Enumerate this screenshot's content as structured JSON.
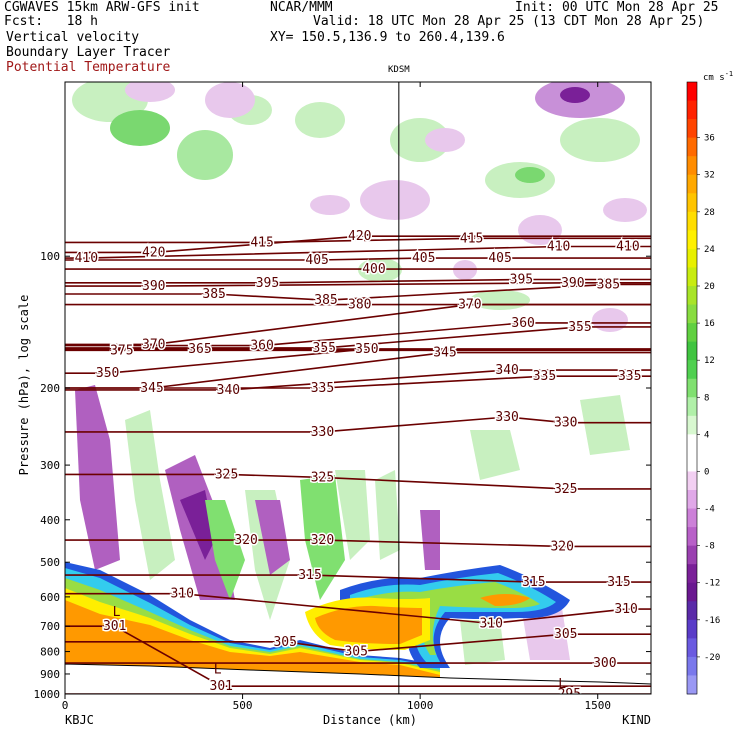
{
  "header": {
    "left_line1": "CGWAVES 15km ARW-GFS init",
    "center_line1": "NCAR/MMM",
    "right_line1": "Init: 00 UTC Mon 28 Apr 25",
    "left_line2": "Fcst:   18 h",
    "right_line2": "Valid: 18 UTC Mon 28 Apr 25 (13 CDT Mon 28 Apr 25)",
    "line3_left": "Vertical velocity",
    "line3_right": "XY= 150.5,136.9 to 260.4,139.6",
    "line4": "Boundary Layer Tracer",
    "line5": "Potential Temperature"
  },
  "colors": {
    "theta_contour": "#6b0000",
    "terrain": "#ffffff",
    "tracer_orange": "#ff9900",
    "tracer_yellow": "#ffee00",
    "tracer_green": "#99dd44",
    "tracer_cyan": "#33ccee",
    "tracer_blue": "#2255dd"
  },
  "chart_data": {
    "type": "cross-section",
    "title": "",
    "xlabel": "Distance (km)",
    "ylabel": "Pressure (hPa), log scale",
    "x_range": [
      0,
      1650
    ],
    "y_range_hpa": [
      1000,
      40
    ],
    "y_scale": "log",
    "x_ticks": [
      0,
      500,
      1000,
      1500
    ],
    "y_ticks": [
      100,
      200,
      300,
      400,
      500,
      600,
      700,
      800,
      900,
      1000
    ],
    "endpoints": {
      "left": "KBJC",
      "right": "KIND"
    },
    "station_marker": {
      "label": "KDSM",
      "x_km": 940
    },
    "theta_contours_K": [
      {
        "value": 301,
        "label_x_km": 140,
        "p_hpa": 700
      },
      {
        "value": 301,
        "label_x_km": 440,
        "p_hpa": 960
      },
      {
        "value": 295,
        "label_x_km": 1420,
        "p_hpa": 1000
      },
      {
        "value": 300,
        "label_x_km": 1520,
        "p_hpa": 850
      },
      {
        "value": 305,
        "label_x_km": 620,
        "p_hpa": 760
      },
      {
        "value": 305,
        "label_x_km": 820,
        "p_hpa": 800
      },
      {
        "value": 305,
        "label_x_km": 1410,
        "p_hpa": 730
      },
      {
        "value": 310,
        "label_x_km": 330,
        "p_hpa": 590
      },
      {
        "value": 310,
        "label_x_km": 1200,
        "p_hpa": 690
      },
      {
        "value": 310,
        "label_x_km": 1580,
        "p_hpa": 640
      },
      {
        "value": 315,
        "label_x_km": 690,
        "p_hpa": 535
      },
      {
        "value": 315,
        "label_x_km": 1320,
        "p_hpa": 555
      },
      {
        "value": 315,
        "label_x_km": 1560,
        "p_hpa": 555
      },
      {
        "value": 320,
        "label_x_km": 510,
        "p_hpa": 445
      },
      {
        "value": 320,
        "label_x_km": 725,
        "p_hpa": 445
      },
      {
        "value": 320,
        "label_x_km": 1400,
        "p_hpa": 460
      },
      {
        "value": 325,
        "label_x_km": 455,
        "p_hpa": 315
      },
      {
        "value": 325,
        "label_x_km": 725,
        "p_hpa": 320
      },
      {
        "value": 325,
        "label_x_km": 1410,
        "p_hpa": 340
      },
      {
        "value": 330,
        "label_x_km": 725,
        "p_hpa": 252
      },
      {
        "value": 330,
        "label_x_km": 1245,
        "p_hpa": 233
      },
      {
        "value": 330,
        "label_x_km": 1410,
        "p_hpa": 240
      },
      {
        "value": 335,
        "label_x_km": 725,
        "p_hpa": 200
      },
      {
        "value": 335,
        "label_x_km": 1350,
        "p_hpa": 188
      },
      {
        "value": 335,
        "label_x_km": 1590,
        "p_hpa": 188
      },
      {
        "value": 340,
        "label_x_km": 460,
        "p_hpa": 202
      },
      {
        "value": 340,
        "label_x_km": 1245,
        "p_hpa": 182
      },
      {
        "value": 345,
        "label_x_km": 245,
        "p_hpa": 200
      },
      {
        "value": 345,
        "label_x_km": 1070,
        "p_hpa": 166
      },
      {
        "value": 350,
        "label_x_km": 120,
        "p_hpa": 185
      },
      {
        "value": 350,
        "label_x_km": 850,
        "p_hpa": 163
      },
      {
        "value": 355,
        "label_x_km": 730,
        "p_hpa": 162
      },
      {
        "value": 355,
        "label_x_km": 1450,
        "p_hpa": 145
      },
      {
        "value": 360,
        "label_x_km": 555,
        "p_hpa": 160
      },
      {
        "value": 360,
        "label_x_km": 1290,
        "p_hpa": 142
      },
      {
        "value": 365,
        "label_x_km": 380,
        "p_hpa": 163
      },
      {
        "value": 370,
        "label_x_km": 250,
        "p_hpa": 159
      },
      {
        "value": 370,
        "label_x_km": 1140,
        "p_hpa": 129
      },
      {
        "value": 375,
        "label_x_km": 160,
        "p_hpa": 164
      },
      {
        "value": 380,
        "label_x_km": 830,
        "p_hpa": 129
      },
      {
        "value": 385,
        "label_x_km": 420,
        "p_hpa": 122
      },
      {
        "value": 385,
        "label_x_km": 735,
        "p_hpa": 126
      },
      {
        "value": 385,
        "label_x_km": 1530,
        "p_hpa": 116
      },
      {
        "value": 390,
        "label_x_km": 250,
        "p_hpa": 117
      },
      {
        "value": 390,
        "label_x_km": 1430,
        "p_hpa": 115
      },
      {
        "value": 395,
        "label_x_km": 570,
        "p_hpa": 115
      },
      {
        "value": 395,
        "label_x_km": 1285,
        "p_hpa": 113
      },
      {
        "value": 400,
        "label_x_km": 870,
        "p_hpa": 107
      },
      {
        "value": 405,
        "label_x_km": 710,
        "p_hpa": 102
      },
      {
        "value": 405,
        "label_x_km": 1010,
        "p_hpa": 101
      },
      {
        "value": 405,
        "label_x_km": 1225,
        "p_hpa": 101
      },
      {
        "value": 410,
        "label_x_km": 60,
        "p_hpa": 101
      },
      {
        "value": 410,
        "label_x_km": 1390,
        "p_hpa": 95
      },
      {
        "value": 410,
        "label_x_km": 1585,
        "p_hpa": 95
      },
      {
        "value": 415,
        "label_x_km": 555,
        "p_hpa": 93
      },
      {
        "value": 415,
        "label_x_km": 1145,
        "p_hpa": 91
      },
      {
        "value": 420,
        "label_x_km": 250,
        "p_hpa": 98
      },
      {
        "value": 420,
        "label_x_km": 830,
        "p_hpa": 90
      }
    ],
    "low_markers": [
      {
        "label": "L",
        "x_km": 145,
        "p_hpa": 650
      },
      {
        "label": "L",
        "x_km": 430,
        "p_hpa": 880
      },
      {
        "label": "L",
        "x_km": 1400,
        "p_hpa": 950
      }
    ],
    "colorbar": {
      "units": "cm s",
      "units_exponent": "-1",
      "tick_labels": [
        "36",
        "32",
        "28",
        "24",
        "20",
        "16",
        "12",
        "8",
        "4",
        "0",
        "-4",
        "-8",
        "-12",
        "-16",
        "-20"
      ],
      "bins": [
        {
          "color": "#ff0000"
        },
        {
          "color": "#ff2200"
        },
        {
          "color": "#ff4400"
        },
        {
          "color": "#ff6a00"
        },
        {
          "color": "#ff8c00"
        },
        {
          "color": "#ffa800"
        },
        {
          "color": "#ffc400"
        },
        {
          "color": "#ffdd00"
        },
        {
          "color": "#fff000"
        },
        {
          "color": "#e8f000"
        },
        {
          "color": "#c8ec10"
        },
        {
          "color": "#a8e428"
        },
        {
          "color": "#88dc40"
        },
        {
          "color": "#60d040"
        },
        {
          "color": "#40c440"
        },
        {
          "color": "#50d050"
        },
        {
          "color": "#80e070"
        },
        {
          "color": "#b0f0a8"
        },
        {
          "color": "#d8f8d0"
        },
        {
          "color": "#ffffff"
        },
        {
          "color": "#ffffff"
        },
        {
          "color": "#f2cff2"
        },
        {
          "color": "#e0a8e8"
        },
        {
          "color": "#cc80d8"
        },
        {
          "color": "#b860c8"
        },
        {
          "color": "#9a40b0"
        },
        {
          "color": "#7a2098"
        },
        {
          "color": "#6a1890"
        },
        {
          "color": "#5a2aa8"
        },
        {
          "color": "#5a3cc8"
        },
        {
          "color": "#6a5ae0"
        },
        {
          "color": "#7a78ec"
        },
        {
          "color": "#9a98f4"
        }
      ]
    }
  }
}
